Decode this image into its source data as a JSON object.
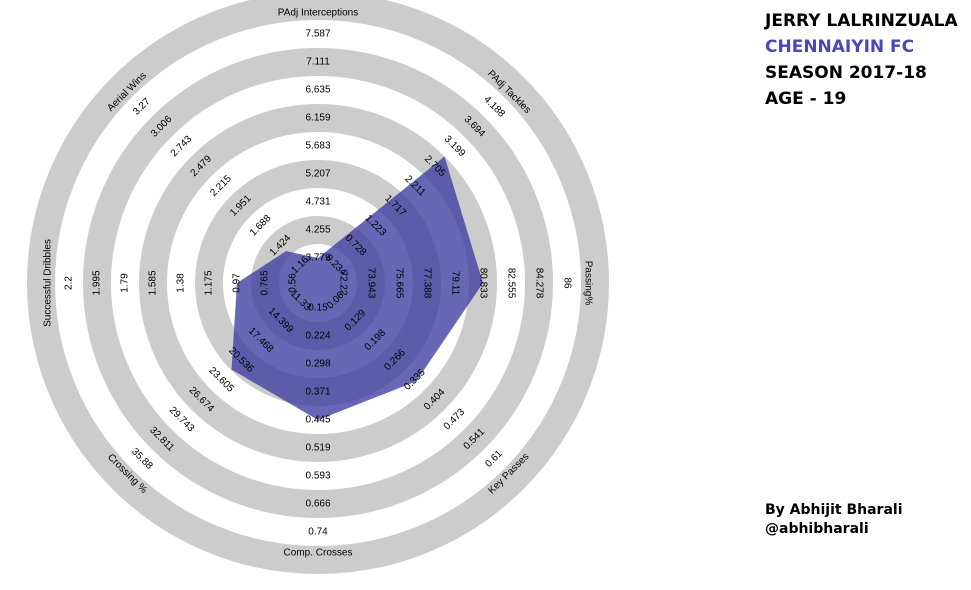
{
  "player": {
    "name": "JERRY LALRINZUALA",
    "team": "CHENNAIYIN FC",
    "season": "SEASON 2017-18",
    "age": "AGE - 19"
  },
  "credit": {
    "author": "By Abhijit Bharali",
    "handle": "@abhibharali"
  },
  "colors": {
    "ring": "#cccccc",
    "fill": "#3c3ca0",
    "team": "#4848b8"
  },
  "chart_data": {
    "type": "radar",
    "rings": 5,
    "axes": [
      {
        "label": "PAdj Interceptions",
        "ticks": [
          "3.779",
          "4.255",
          "4.731",
          "5.207",
          "5.683",
          "6.159",
          "6.635",
          "7.111",
          "7.587"
        ],
        "value": 3.779
      },
      {
        "label": "PAdj Tackles",
        "ticks": [
          "0.234",
          "0.728",
          "1.223",
          "1.717",
          "2.211",
          "2.705",
          "3.199",
          "3.694",
          "4.188"
        ],
        "value": 2.95
      },
      {
        "label": "Passing%",
        "ticks": [
          "72.22",
          "73.943",
          "75.665",
          "77.388",
          "79.11",
          "80.833",
          "82.555",
          "84.278",
          "86"
        ],
        "value": 80.833
      },
      {
        "label": "Key Passes",
        "ticks": [
          "0.06",
          "0.129",
          "0.198",
          "0.266",
          "0.335",
          "0.404",
          "0.473",
          "0.541",
          "0.61"
        ],
        "value": 0.34
      },
      {
        "label": "Comp. Crosses",
        "ticks": [
          "0.15",
          "0.224",
          "0.298",
          "0.371",
          "0.445",
          "0.519",
          "0.593",
          "0.666",
          "0.74"
        ],
        "value": 0.445
      },
      {
        "label": "Crossing %",
        "ticks": [
          "11.33",
          "14.399",
          "17.468",
          "20.536",
          "23.605",
          "26.674",
          "29.743",
          "32.811",
          "35.88"
        ],
        "value": 22.0
      },
      {
        "label": "Successful Dribbles",
        "ticks": [
          "0.56",
          "0.765",
          "0.97",
          "1.175",
          "1.38",
          "1.585",
          "1.79",
          "1.995",
          "2.2"
        ],
        "value": 0.97
      },
      {
        "label": "Aerial Wins",
        "ticks": [
          "1.16",
          "1.424",
          "1.688",
          "1.951",
          "2.215",
          "2.479",
          "2.743",
          "3.006",
          "3.27"
        ],
        "value": 1.35
      }
    ]
  }
}
